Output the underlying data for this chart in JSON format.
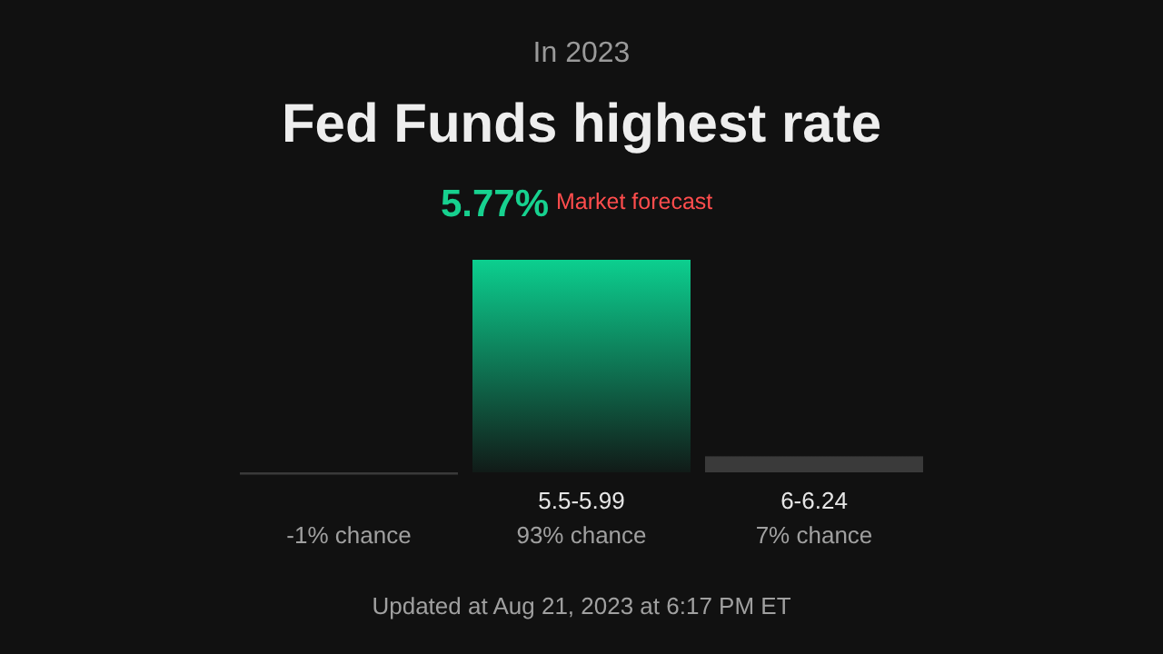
{
  "chart_data": {
    "type": "bar",
    "subtitle": "In 2023",
    "title": "Fed Funds highest rate",
    "annotations": [
      "5.77%",
      "Market forecast",
      "Updated at Aug 21, 2023 at 6:17 PM ET"
    ],
    "categories": [
      null,
      "5.5-5.99",
      "6-6.24"
    ],
    "values": [
      -1,
      93,
      7
    ],
    "value_labels": [
      "-1% chance",
      "93% chance",
      "7% chance"
    ],
    "colors": [
      "#3a3a3a",
      "#0ccf8f",
      "#3a3a3a"
    ]
  }
}
